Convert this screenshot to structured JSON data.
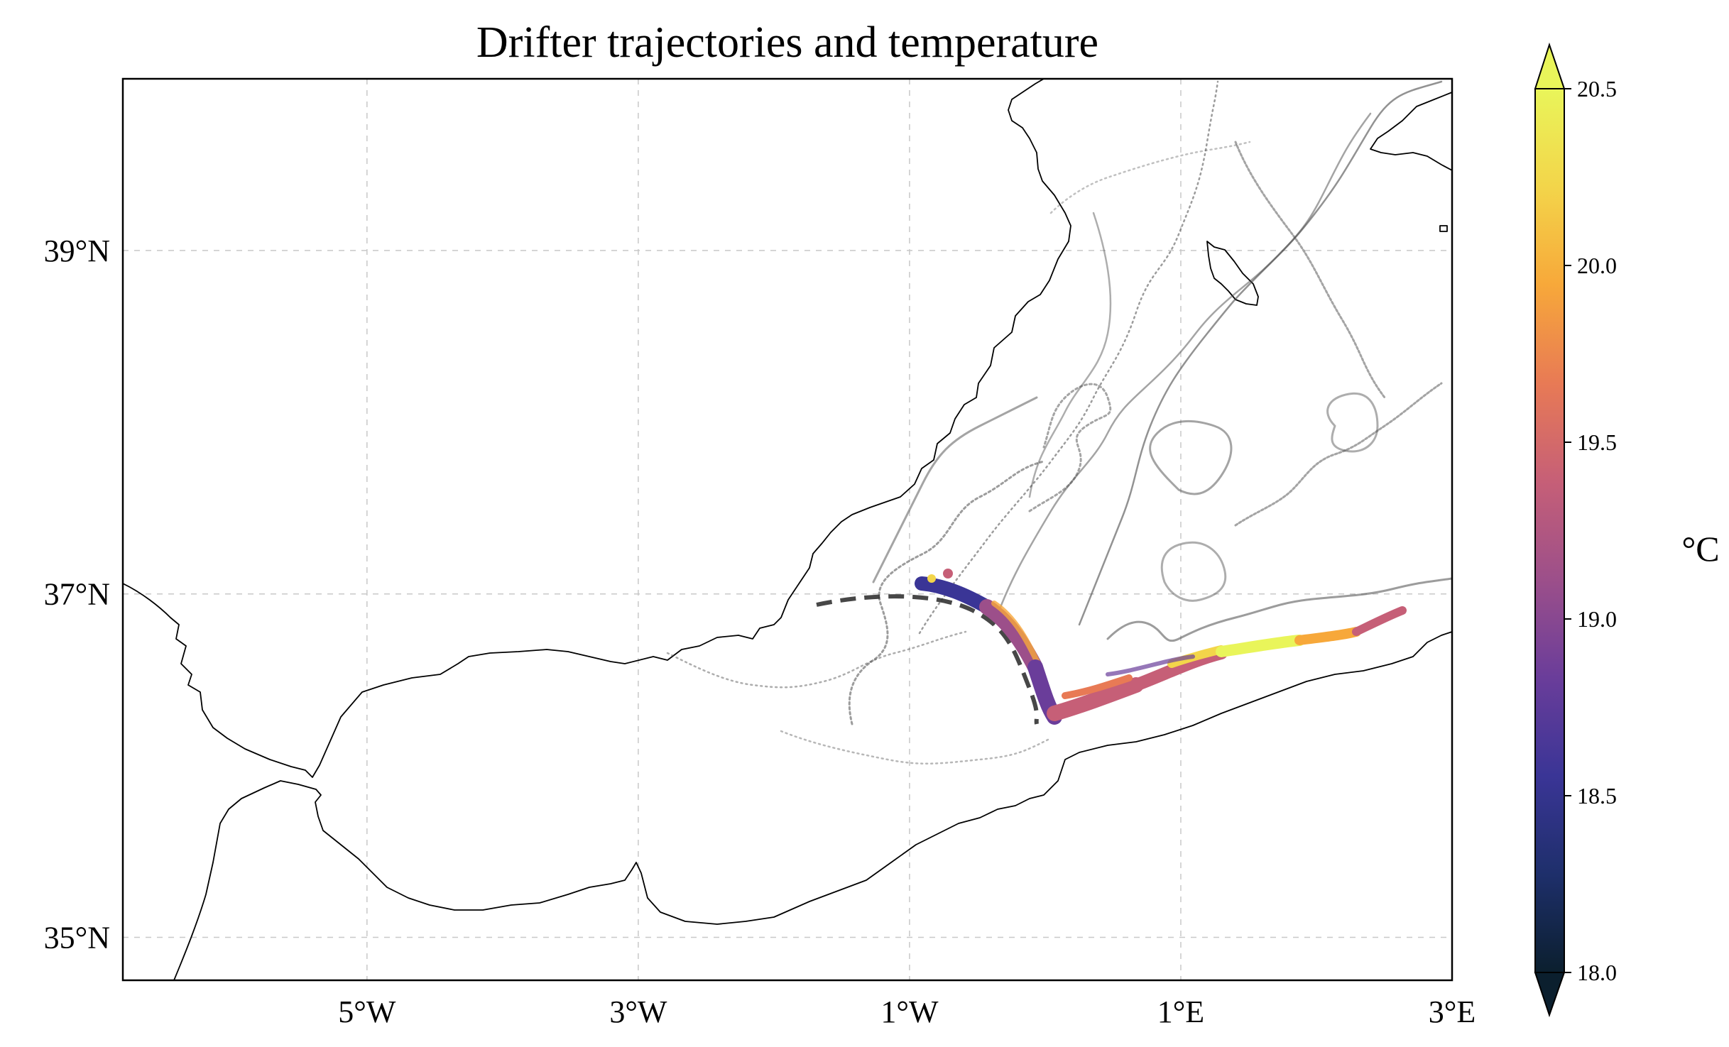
{
  "title": "Drifter trajectories and temperature",
  "axes": {
    "lon_range": [
      -6.8,
      3.0
    ],
    "lat_range": [
      34.75,
      40.0
    ],
    "x_ticks": [
      {
        "lon": -5,
        "label": "5°W"
      },
      {
        "lon": -3,
        "label": "3°W"
      },
      {
        "lon": -1,
        "label": "1°W"
      },
      {
        "lon": 1,
        "label": "1°E"
      },
      {
        "lon": 3,
        "label": "3°E"
      }
    ],
    "y_ticks": [
      {
        "lat": 35,
        "label": "35°N"
      },
      {
        "lat": 37,
        "label": "37°N"
      },
      {
        "lat": 39,
        "label": "39°N"
      }
    ],
    "grid": true
  },
  "colorbar": {
    "label": "°C",
    "min": 18.0,
    "max": 20.5,
    "ticks": [
      "18.0",
      "18.5",
      "19.0",
      "19.5",
      "20.0",
      "20.5"
    ],
    "extend": "both",
    "colors": [
      "#0b1f2e",
      "#1e2f6b",
      "#3a3596",
      "#6a3d9a",
      "#9c4f8a",
      "#c65f77",
      "#e87a55",
      "#f7a83a",
      "#f3d54a",
      "#e9f55a"
    ]
  },
  "colors": {
    "coast": "#000000",
    "track": "#4a4a4a",
    "grid": "#c8c8c8"
  }
}
